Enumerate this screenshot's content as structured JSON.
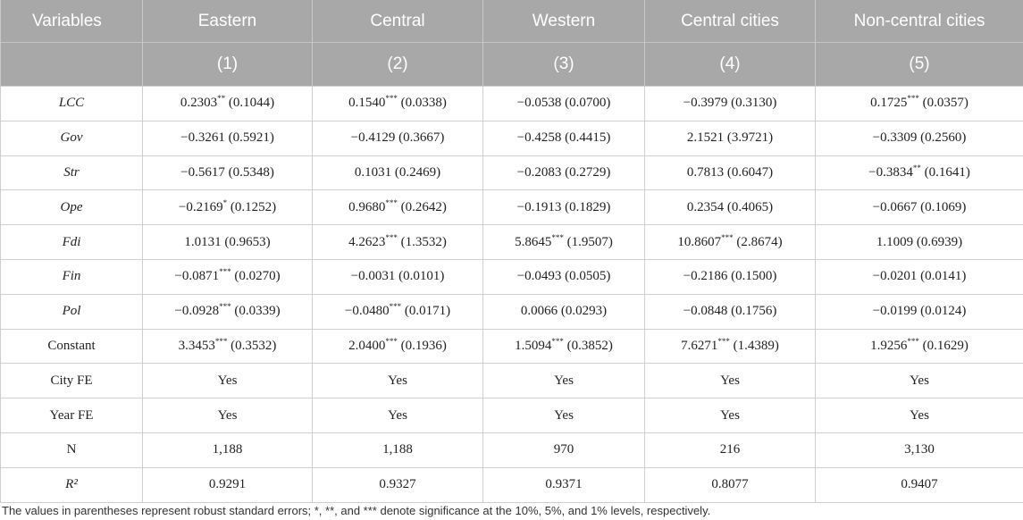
{
  "table": {
    "headers": [
      "Variables",
      "Eastern",
      "Central",
      "Western",
      "Central cities",
      "Non-central cities"
    ],
    "subheaders": [
      "",
      "(1)",
      "(2)",
      "(3)",
      "(4)",
      "(5)"
    ],
    "rows": [
      {
        "label": "LCC",
        "italic": true,
        "cells": [
          "0.2303** (0.1044)",
          "0.1540*** (0.0338)",
          "−0.0538 (0.0700)",
          "−0.3979 (0.3130)",
          "0.1725*** (0.0357)"
        ]
      },
      {
        "label": "Gov",
        "italic": true,
        "cells": [
          "−0.3261 (0.5921)",
          "−0.4129 (0.3667)",
          "−0.4258 (0.4415)",
          "2.1521 (3.9721)",
          "−0.3309 (0.2560)"
        ]
      },
      {
        "label": "Str",
        "italic": true,
        "cells": [
          "−0.5617 (0.5348)",
          "0.1031 (0.2469)",
          "−0.2083 (0.2729)",
          "0.7813 (0.6047)",
          "−0.3834** (0.1641)"
        ]
      },
      {
        "label": "Ope",
        "italic": true,
        "cells": [
          "−0.2169* (0.1252)",
          "0.9680*** (0.2642)",
          "−0.1913 (0.1829)",
          "0.2354 (0.4065)",
          "−0.0667 (0.1069)"
        ]
      },
      {
        "label": "Fdi",
        "italic": true,
        "cells": [
          "1.0131 (0.9653)",
          "4.2623*** (1.3532)",
          "5.8645*** (1.9507)",
          "10.8607*** (2.8674)",
          "1.1009 (0.6939)"
        ]
      },
      {
        "label": "Fin",
        "italic": true,
        "cells": [
          "−0.0871*** (0.0270)",
          "−0.0031 (0.0101)",
          "−0.0493 (0.0505)",
          "−0.2186 (0.1500)",
          "−0.0201 (0.0141)"
        ]
      },
      {
        "label": "Pol",
        "italic": true,
        "cells": [
          "−0.0928*** (0.0339)",
          "−0.0480*** (0.0171)",
          "0.0066 (0.0293)",
          "−0.0848 (0.1756)",
          "−0.0199 (0.0124)"
        ]
      },
      {
        "label": "Constant",
        "italic": false,
        "cells": [
          "3.3453*** (0.3532)",
          "2.0400*** (0.1936)",
          "1.5094*** (0.3852)",
          "7.6271*** (1.4389)",
          "1.9256*** (0.1629)"
        ]
      },
      {
        "label": "City FE",
        "italic": false,
        "cells": [
          "Yes",
          "Yes",
          "Yes",
          "Yes",
          "Yes"
        ]
      },
      {
        "label": "Year FE",
        "italic": false,
        "cells": [
          "Yes",
          "Yes",
          "Yes",
          "Yes",
          "Yes"
        ]
      },
      {
        "label": "N",
        "italic": false,
        "cells": [
          "1,188",
          "1,188",
          "970",
          "216",
          "3,130"
        ]
      },
      {
        "label": "R²",
        "italic": true,
        "cells": [
          "0.9291",
          "0.9327",
          "0.9371",
          "0.8077",
          "0.9407"
        ]
      }
    ]
  },
  "footnote": "The values in parentheses represent robust standard errors; *, **, and *** denote significance at the 10%, 5%, and 1% levels, respectively."
}
